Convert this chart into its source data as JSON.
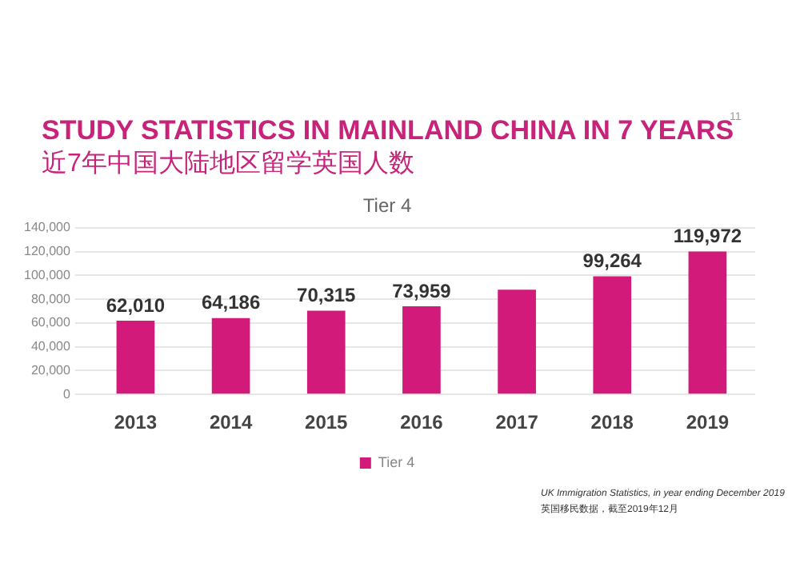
{
  "chart_data": {
    "type": "bar",
    "title": "Tier 4",
    "categories": [
      "2013",
      "2014",
      "2015",
      "2016",
      "2017",
      "2018",
      "2019"
    ],
    "series": [
      {
        "name": "Tier 4",
        "color": "#d11a7a",
        "values": [
          62010,
          64186,
          70315,
          73959,
          88000,
          99264,
          119972
        ],
        "value_labels": [
          "62,010",
          "64,186",
          "70,315",
          "73,959",
          null,
          "99,264",
          "119,972"
        ]
      }
    ],
    "ylim": [
      0,
      140000
    ],
    "yticks": [
      0,
      {
        "value": 20000,
        "label": "20,000"
      },
      {
        "value": 40000,
        "label": "40,000"
      },
      {
        "value": 60000,
        "label": "60,000"
      },
      {
        "value": 80000,
        "label": "80,000"
      },
      {
        "value": 100000,
        "label": "100,000"
      },
      {
        "value": 120000,
        "label": "120,000"
      },
      {
        "value": 140000,
        "label": "140,000"
      }
    ],
    "grid": "y",
    "legend": "bottom",
    "annotations": [
      "STUDY STATISTICS IN MAINLAND CHINA IN 7 YEARS",
      "近7年中国大陆地区留学英国人数",
      "11",
      "UK Immigration Statistics, in year ending December 2019",
      "英国移民数据，截至2019年12月"
    ]
  }
}
